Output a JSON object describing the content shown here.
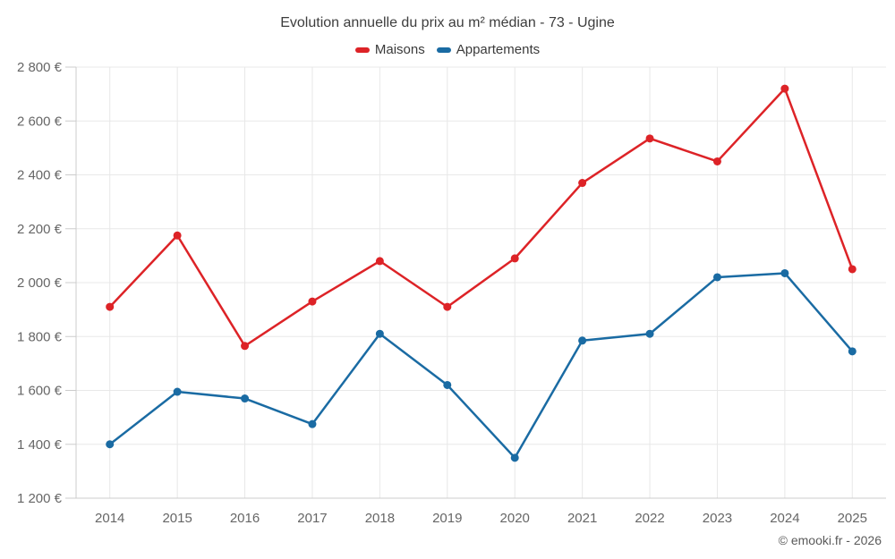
{
  "chart_data": {
    "type": "line",
    "title": "Evolution annuelle du prix au m² médian - 73 - Ugine",
    "categories": [
      "2014",
      "2015",
      "2016",
      "2017",
      "2018",
      "2019",
      "2020",
      "2021",
      "2022",
      "2023",
      "2024",
      "2025"
    ],
    "series": [
      {
        "name": "Maisons",
        "color": "#dd2327",
        "values": [
          1910,
          2175,
          1765,
          1930,
          2080,
          1910,
          2090,
          2370,
          2535,
          2450,
          2720,
          2050
        ]
      },
      {
        "name": "Appartements",
        "color": "#1a6ba3",
        "values": [
          1400,
          1595,
          1570,
          1475,
          1810,
          1620,
          1350,
          1785,
          1810,
          2020,
          2035,
          1745
        ]
      }
    ],
    "xlabel": "",
    "ylabel": "",
    "ylim": [
      1200,
      2800
    ],
    "ytick_step": 200,
    "ytick_labels": [
      "1 200 €",
      "1 400 €",
      "1 600 €",
      "1 800 €",
      "2 000 €",
      "2 200 €",
      "2 400 €",
      "2 600 €",
      "2 800 €"
    ],
    "grid": true,
    "legend_position": "top",
    "credit": "© emooki.fr - 2026"
  }
}
